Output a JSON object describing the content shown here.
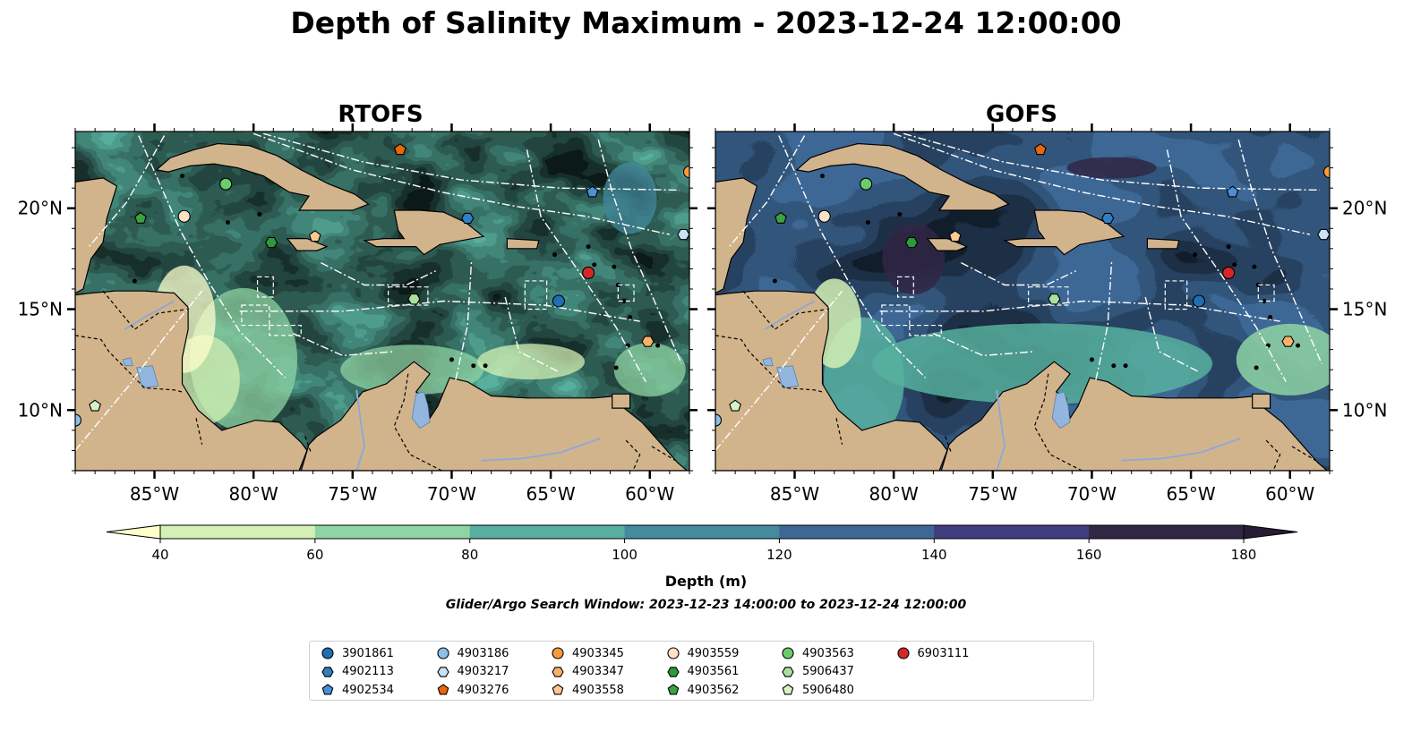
{
  "title": "Depth of Salinity Maximum - 2023-12-24 12:00:00",
  "panels": [
    {
      "title": "RTOFS",
      "model": "rtofs"
    },
    {
      "title": "GOFS",
      "model": "gofs"
    }
  ],
  "map": {
    "lon_range": [
      -89,
      -58
    ],
    "lat_range": [
      7,
      23.8
    ],
    "lon_ticks": [
      {
        "value": -85,
        "label": "85°W"
      },
      {
        "value": -80,
        "label": "80°W"
      },
      {
        "value": -75,
        "label": "75°W"
      },
      {
        "value": -70,
        "label": "70°W"
      },
      {
        "value": -65,
        "label": "65°W"
      },
      {
        "value": -60,
        "label": "60°W"
      }
    ],
    "lat_ticks": [
      {
        "value": 20,
        "label": "20°N"
      },
      {
        "value": 15,
        "label": "15°N"
      },
      {
        "value": 10,
        "label": "10°N"
      }
    ],
    "colors": {
      "land": "#d2b48c",
      "water_inland": "#93b6de",
      "rivers": "#8fa9d4",
      "coast": "#000000",
      "tracks": "#ffffff"
    }
  },
  "colorbar": {
    "label": "Depth (m)",
    "ticks": [
      40,
      60,
      80,
      100,
      120,
      140,
      160,
      180
    ],
    "colors": [
      "#ffffcc",
      "#d4f0b4",
      "#8fd4a4",
      "#57b09f",
      "#438b9d",
      "#3d6896",
      "#3f3d7d",
      "#302745",
      "#271b35"
    ]
  },
  "search_window": "Glider/Argo Search Window: 2023-12-23 14:00:00 to 2023-12-24 12:00:00",
  "floats": [
    {
      "id": "3901861",
      "marker": "circle",
      "color": "#1f6eb3",
      "lon": -64.6,
      "lat": 15.4
    },
    {
      "id": "4902113",
      "marker": "hexagon",
      "color": "#2f7fc1",
      "lon": -69.2,
      "lat": 19.5
    },
    {
      "id": "4902534",
      "marker": "pentagon",
      "color": "#4a90d9",
      "lon": -62.9,
      "lat": 20.8
    },
    {
      "id": "4903186",
      "marker": "circle",
      "color": "#8cc0e8",
      "lon": -89,
      "lat": 9.5
    },
    {
      "id": "4903217",
      "marker": "hexagon",
      "color": "#c9e2f5",
      "lon": -58.3,
      "lat": 18.7
    },
    {
      "id": "4903276",
      "marker": "pentagon",
      "color": "#e8670b",
      "lon": -72.6,
      "lat": 22.9
    },
    {
      "id": "4903345",
      "marker": "circle",
      "color": "#f79a3c",
      "lon": -58,
      "lat": 21.8
    },
    {
      "id": "4903347",
      "marker": "hexagon",
      "color": "#fbb16a",
      "lon": -60.1,
      "lat": 13.4
    },
    {
      "id": "4903558",
      "marker": "pentagon",
      "color": "#fcc894",
      "lon": -76.9,
      "lat": 18.6
    },
    {
      "id": "4903559",
      "marker": "circle",
      "color": "#fde2c8",
      "lon": -83.5,
      "lat": 19.6
    },
    {
      "id": "4903561",
      "marker": "hexagon",
      "color": "#2c9a3a",
      "lon": -79.1,
      "lat": 18.3
    },
    {
      "id": "4903562",
      "marker": "pentagon",
      "color": "#3aa241",
      "lon": -85.7,
      "lat": 19.5
    },
    {
      "id": "4903563",
      "marker": "circle",
      "color": "#6ccb6a",
      "lon": -81.4,
      "lat": 21.2
    },
    {
      "id": "5906437",
      "marker": "hexagon",
      "color": "#a8e0a0",
      "lon": -71.9,
      "lat": 15.5
    },
    {
      "id": "5906480",
      "marker": "pentagon",
      "color": "#d6f3c8",
      "lon": -88,
      "lat": 10.2
    },
    {
      "id": "6903111",
      "marker": "circle",
      "color": "#d62728",
      "lon": -63.1,
      "lat": 16.8
    }
  ]
}
